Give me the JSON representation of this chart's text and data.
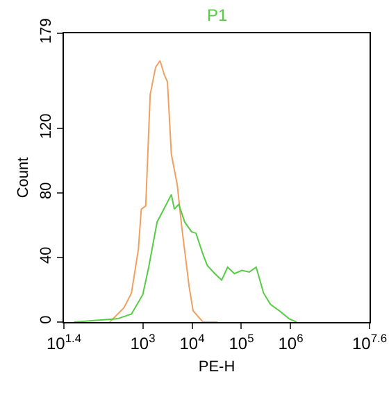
{
  "chart_data": {
    "type": "line",
    "xlabel": "PE-H",
    "ylabel": "Count",
    "log": "x",
    "grid": false,
    "legend": false,
    "marker": "none",
    "line_style": "solid",
    "xlim": [
      25.12,
      39810717
    ],
    "xticks": [
      {
        "value": 25.12,
        "label": "10$^{1.4}$"
      },
      {
        "value": 1000,
        "label": "10$^{3}$"
      },
      {
        "value": 10000,
        "label": "10$^{4}$"
      },
      {
        "value": 100000,
        "label": "10$^{5}$"
      },
      {
        "value": 1000000,
        "label": "10$^{6}$"
      },
      {
        "value": 39810717,
        "label": "10$^{7.6}$"
      }
    ],
    "ylim": [
      0,
      179
    ],
    "yticks": [
      0,
      40,
      80,
      120,
      179
    ],
    "series": [
      {
        "color": "#f0a060",
        "x": [
          214,
          417,
          589,
          813,
          933,
          1148,
          1413,
          1820,
          2239,
          2754,
          3162,
          3802,
          5012,
          6166,
          8710,
          10471,
          16596,
          33113
        ],
        "values": [
          0,
          9,
          18,
          45,
          70,
          72,
          141,
          158,
          162,
          153,
          149,
          104,
          85,
          59,
          22,
          7,
          0,
          0
        ]
      },
      {
        "name": "P1",
        "color": "#55cc44",
        "x": [
          40,
          302,
          589,
          1000,
          1318,
          1950,
          3802,
          4365,
          5370,
          7079,
          9772,
          12023,
          16596,
          20417,
          28840,
          39811,
          52481,
          72444,
          102329,
          144544,
          199526,
          281838,
          389045,
          588844,
          933254,
          1318257
        ],
        "values": [
          0,
          2,
          5,
          17,
          34,
          62,
          79,
          70,
          73,
          62,
          56,
          55,
          42,
          35,
          30,
          26,
          34,
          30,
          32,
          31,
          34,
          18,
          11,
          7,
          2,
          0
        ]
      }
    ]
  }
}
